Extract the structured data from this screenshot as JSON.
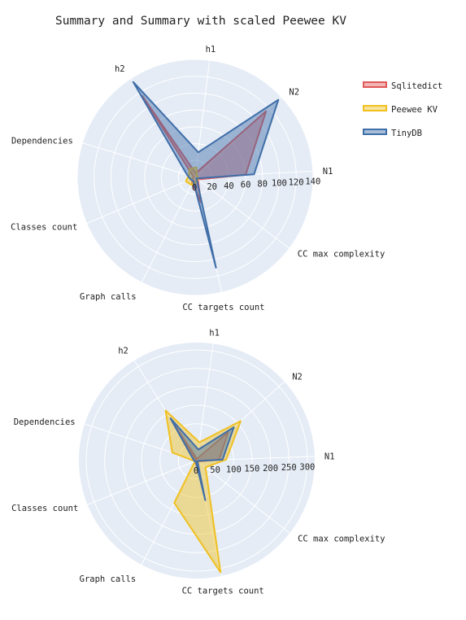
{
  "title": "Summary and Summary with scaled Peewee KV",
  "colors": {
    "background": "#e5ecf6",
    "grid": "#ffffff",
    "Sqlitedict": "#e05a5a",
    "Peewee KV": "#f0c020",
    "TinyDB": "#3f6ea8"
  },
  "legend": {
    "placement": "right",
    "items": [
      "Sqlitedict",
      "Peewee KV",
      "TinyDB"
    ]
  },
  "chart_data": [
    {
      "type": "radar",
      "title": "",
      "axes": [
        "N1",
        "N2",
        "h1",
        "h2",
        "Dependencies",
        "Classes count",
        "Graph calls",
        "CC targets count",
        "CC max complexity"
      ],
      "radial_range": [
        0,
        140
      ],
      "radial_ticks": [
        "0",
        "20",
        "40",
        "60",
        "80",
        "100",
        "120",
        "140"
      ],
      "grid": true,
      "series": [
        {
          "name": "Sqlitedict",
          "values": [
            60,
            115,
            5,
            115,
            2,
            4,
            8,
            30,
            4
          ]
        },
        {
          "name": "Peewee KV",
          "values": [
            3,
            3,
            12,
            12,
            8,
            12,
            10,
            6,
            4
          ]
        },
        {
          "name": "TinyDB",
          "values": [
            70,
            135,
            30,
            135,
            10,
            6,
            5,
            110,
            2
          ]
        }
      ]
    },
    {
      "type": "radar",
      "title": "",
      "axes": [
        "N1",
        "N2",
        "h1",
        "h2",
        "Dependencies",
        "Classes count",
        "Graph calls",
        "CC targets count",
        "CC max complexity"
      ],
      "radial_range": [
        0,
        320
      ],
      "radial_ticks": [
        "0",
        "50",
        "100",
        "150",
        "200",
        "250",
        "300"
      ],
      "grid": true,
      "series": [
        {
          "name": "Sqlitedict",
          "values": [
            60,
            115,
            5,
            115,
            2,
            4,
            8,
            30,
            4
          ]
        },
        {
          "name": "Peewee KV",
          "values": [
            80,
            160,
            50,
            160,
            70,
            5,
            130,
            310,
            30
          ]
        },
        {
          "name": "TinyDB",
          "values": [
            70,
            135,
            30,
            135,
            10,
            6,
            5,
            110,
            2
          ]
        }
      ]
    }
  ]
}
